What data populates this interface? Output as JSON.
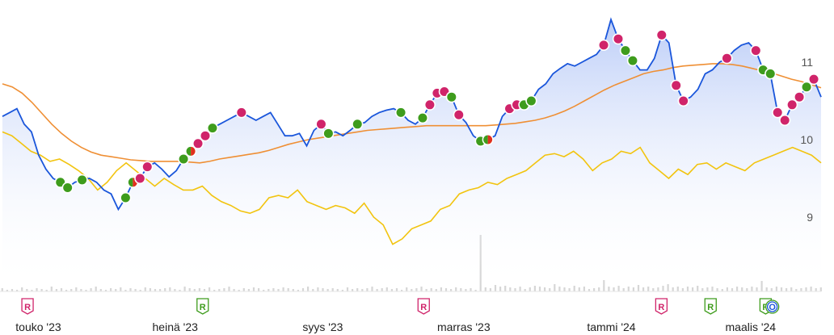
{
  "chart_data": {
    "type": "line",
    "title": "",
    "xlabel": "",
    "ylabel": "",
    "ylim": [
      8.5,
      11.8
    ],
    "y_ticks": [
      9,
      10,
      11
    ],
    "x_ticks": [
      {
        "label": "touko '23",
        "t": 0.046
      },
      {
        "label": "heinä '23",
        "t": 0.21
      },
      {
        "label": "syys '23",
        "t": 0.387
      },
      {
        "label": "marras '23",
        "t": 0.556
      },
      {
        "label": "tammi '24",
        "t": 0.733
      },
      {
        "label": "maalis '24",
        "t": 0.9
      }
    ],
    "grid": false,
    "colors": {
      "price": "#1a56db",
      "area_top": "#b9cbf7",
      "moving_average": "#ef8f34",
      "relative": "#f2c40f",
      "buy": "#3e9c1c",
      "sell": "#d0246a",
      "mixed": "#e0301e",
      "volume": "#d6d6d6"
    },
    "price": [
      10.3,
      10.35,
      10.4,
      10.2,
      10.1,
      9.8,
      9.62,
      9.5,
      9.45,
      9.38,
      9.45,
      9.48,
      9.5,
      9.45,
      9.35,
      9.3,
      9.1,
      9.25,
      9.45,
      9.5,
      9.65,
      9.7,
      9.62,
      9.52,
      9.6,
      9.75,
      9.85,
      9.95,
      10.05,
      10.15,
      10.2,
      10.25,
      10.3,
      10.35,
      10.3,
      10.25,
      10.3,
      10.35,
      10.2,
      10.05,
      10.05,
      10.08,
      9.92,
      10.12,
      10.2,
      10.08,
      10.1,
      10.05,
      10.12,
      10.2,
      10.22,
      10.3,
      10.35,
      10.38,
      10.4,
      10.35,
      10.25,
      10.2,
      10.28,
      10.45,
      10.6,
      10.62,
      10.55,
      10.32,
      10.22,
      10.05,
      9.98,
      10.0,
      10.05,
      10.3,
      10.4,
      10.45,
      10.45,
      10.5,
      10.65,
      10.72,
      10.85,
      10.92,
      10.98,
      10.95,
      11.0,
      11.05,
      11.1,
      11.22,
      11.55,
      11.3,
      11.15,
      11.02,
      10.9,
      10.9,
      11.05,
      11.35,
      11.25,
      10.7,
      10.5,
      10.55,
      10.65,
      10.85,
      10.9,
      11.0,
      11.05,
      11.15,
      11.22,
      11.25,
      11.15,
      10.9,
      10.85,
      10.35,
      10.25,
      10.45,
      10.55,
      10.68,
      10.78,
      10.55
    ],
    "moving_average": [
      10.72,
      10.68,
      10.6,
      10.48,
      10.34,
      10.2,
      10.08,
      9.98,
      9.9,
      9.84,
      9.8,
      9.78,
      9.76,
      9.74,
      9.73,
      9.72,
      9.72,
      9.72,
      9.72,
      9.71,
      9.7,
      9.72,
      9.75,
      9.77,
      9.79,
      9.81,
      9.83,
      9.86,
      9.9,
      9.94,
      9.97,
      10.0,
      10.02,
      10.04,
      10.06,
      10.08,
      10.1,
      10.12,
      10.13,
      10.14,
      10.15,
      10.16,
      10.17,
      10.18,
      10.18,
      10.18,
      10.18,
      10.18,
      10.18,
      10.18,
      10.19,
      10.2,
      10.21,
      10.23,
      10.25,
      10.28,
      10.32,
      10.37,
      10.43,
      10.5,
      10.57,
      10.64,
      10.7,
      10.75,
      10.8,
      10.85,
      10.88,
      10.9,
      10.93,
      10.95,
      10.96,
      10.97,
      10.98,
      10.98,
      10.97,
      10.95,
      10.92,
      10.89,
      10.86,
      10.82,
      10.78,
      10.75,
      10.71,
      10.67
    ],
    "relative": [
      10.1,
      10.05,
      9.95,
      9.85,
      9.8,
      9.72,
      9.75,
      9.68,
      9.6,
      9.5,
      9.35,
      9.45,
      9.6,
      9.7,
      9.6,
      9.5,
      9.4,
      9.5,
      9.42,
      9.35,
      9.35,
      9.4,
      9.28,
      9.2,
      9.15,
      9.08,
      9.05,
      9.1,
      9.25,
      9.28,
      9.25,
      9.35,
      9.2,
      9.15,
      9.1,
      9.15,
      9.12,
      9.05,
      9.18,
      9.0,
      8.9,
      8.65,
      8.72,
      8.85,
      8.9,
      8.95,
      9.1,
      9.15,
      9.3,
      9.35,
      9.38,
      9.45,
      9.42,
      9.5,
      9.55,
      9.6,
      9.7,
      9.8,
      9.82,
      9.78,
      9.85,
      9.75,
      9.6,
      9.7,
      9.75,
      9.85,
      9.82,
      9.9,
      9.7,
      9.6,
      9.5,
      9.62,
      9.55,
      9.68,
      9.7,
      9.62,
      9.7,
      9.65,
      9.6,
      9.7,
      9.75,
      9.8,
      9.85,
      9.9,
      9.85,
      9.8,
      9.7
    ],
    "markers": [
      {
        "i": 8,
        "type": "buy"
      },
      {
        "i": 9,
        "type": "buy"
      },
      {
        "i": 11,
        "type": "buy"
      },
      {
        "i": 17,
        "type": "buy"
      },
      {
        "i": 18,
        "type": "mixed"
      },
      {
        "i": 19,
        "type": "sell"
      },
      {
        "i": 20,
        "type": "sell"
      },
      {
        "i": 25,
        "type": "buy"
      },
      {
        "i": 26,
        "type": "mixed"
      },
      {
        "i": 27,
        "type": "sell"
      },
      {
        "i": 28,
        "type": "sell"
      },
      {
        "i": 29,
        "type": "buy"
      },
      {
        "i": 33,
        "type": "sell"
      },
      {
        "i": 44,
        "type": "sell"
      },
      {
        "i": 45,
        "type": "buy"
      },
      {
        "i": 49,
        "type": "buy"
      },
      {
        "i": 55,
        "type": "buy"
      },
      {
        "i": 58,
        "type": "buy"
      },
      {
        "i": 59,
        "type": "sell"
      },
      {
        "i": 60,
        "type": "sell"
      },
      {
        "i": 61,
        "type": "sell"
      },
      {
        "i": 62,
        "type": "buy"
      },
      {
        "i": 63,
        "type": "sell"
      },
      {
        "i": 66,
        "type": "buy"
      },
      {
        "i": 67,
        "type": "mixed"
      },
      {
        "i": 70,
        "type": "sell"
      },
      {
        "i": 71,
        "type": "sell"
      },
      {
        "i": 72,
        "type": "buy"
      },
      {
        "i": 73,
        "type": "buy"
      },
      {
        "i": 83,
        "type": "sell"
      },
      {
        "i": 85,
        "type": "sell"
      },
      {
        "i": 86,
        "type": "buy"
      },
      {
        "i": 87,
        "type": "buy"
      },
      {
        "i": 91,
        "type": "sell"
      },
      {
        "i": 93,
        "type": "sell"
      },
      {
        "i": 94,
        "type": "sell"
      },
      {
        "i": 100,
        "type": "sell"
      },
      {
        "i": 104,
        "type": "sell"
      },
      {
        "i": 105,
        "type": "buy"
      },
      {
        "i": 106,
        "type": "buy"
      },
      {
        "i": 107,
        "type": "sell"
      },
      {
        "i": 108,
        "type": "sell"
      },
      {
        "i": 109,
        "type": "sell"
      },
      {
        "i": 110,
        "type": "sell"
      },
      {
        "i": 111,
        "type": "buy"
      },
      {
        "i": 112,
        "type": "sell"
      }
    ],
    "volume": [
      4,
      2,
      3,
      2,
      5,
      3,
      2,
      4,
      3,
      2,
      6,
      3,
      4,
      2,
      3,
      5,
      3,
      2,
      4,
      6,
      3,
      2,
      4,
      3,
      5,
      2,
      4,
      3,
      2,
      5,
      4,
      3,
      3,
      4,
      5,
      3,
      2,
      6,
      4,
      3,
      4,
      3,
      5,
      2,
      3,
      4,
      6,
      3,
      2,
      4,
      3,
      5,
      4,
      2,
      3,
      4,
      3,
      5,
      4,
      3,
      2,
      4,
      6,
      3,
      5,
      4,
      3,
      4,
      3,
      2,
      5,
      3,
      4,
      3,
      4,
      6,
      3,
      4,
      5,
      3,
      4,
      2,
      5,
      3,
      4,
      6,
      3,
      4,
      3,
      5,
      4,
      3,
      5,
      4,
      3,
      4,
      2,
      70,
      5,
      4,
      8,
      6,
      7,
      5,
      4,
      6,
      3,
      5,
      7,
      6,
      5,
      4,
      9,
      6,
      5,
      4,
      7,
      5,
      6,
      3,
      4,
      5,
      14,
      6,
      5,
      7,
      4,
      6,
      5,
      8,
      5,
      6,
      4,
      5,
      7,
      9,
      5,
      6,
      4,
      6,
      5,
      7,
      4,
      5,
      6,
      4,
      3,
      5,
      4,
      6,
      5,
      4,
      6,
      5,
      13,
      5,
      4,
      6,
      5,
      4,
      5,
      3,
      4,
      5,
      6,
      4,
      5
    ],
    "event_flags": [
      {
        "t": 0.033,
        "label": "R",
        "type": "sell"
      },
      {
        "t": 0.243,
        "label": "R",
        "type": "buy"
      },
      {
        "t": 0.508,
        "label": "R",
        "type": "sell"
      },
      {
        "t": 0.793,
        "label": "R",
        "type": "sell"
      },
      {
        "t": 0.852,
        "label": "R",
        "type": "buy"
      },
      {
        "t": 0.918,
        "label": "R",
        "type": "buy"
      },
      {
        "t": 0.926,
        "label": "O",
        "type": "info"
      }
    ]
  }
}
